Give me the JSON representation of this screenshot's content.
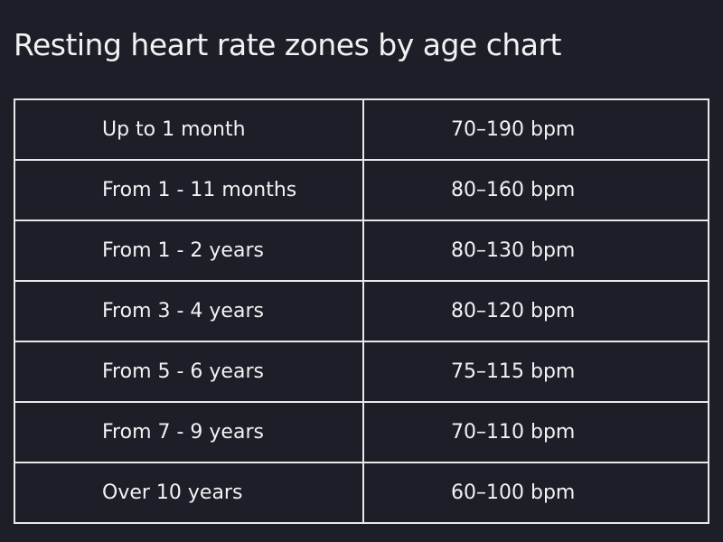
{
  "header": {
    "title": "Resting heart rate zones by age chart"
  },
  "table": {
    "rows": [
      [
        "Up to 1 month",
        "70–190 bpm"
      ],
      [
        "From 1 - 11 months",
        "80–160 bpm"
      ],
      [
        "From 1 - 2 years",
        "80–130 bpm"
      ],
      [
        "From 3 - 4 years",
        "80–120 bpm"
      ],
      [
        "From 5 - 6 years",
        "75–115 bpm"
      ],
      [
        "From 7 - 9 years",
        "70–110 bpm"
      ],
      [
        "Over 10 years",
        "60–100 bpm"
      ]
    ]
  }
}
